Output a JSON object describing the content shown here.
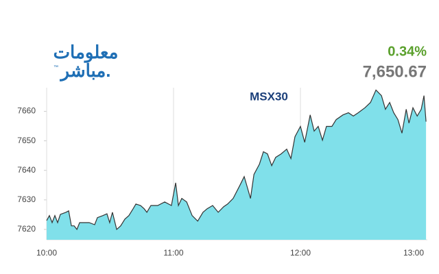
{
  "logo": {
    "line1": "معلومات",
    "line2": "مباشر.",
    "mark": "™"
  },
  "change": "0.34%",
  "last": "7,650.67",
  "chart_data": {
    "type": "area",
    "title": "MSX30",
    "x": [
      0,
      1.3,
      2.6,
      3.9,
      5.2,
      6.5,
      9.1,
      10.4,
      11.7,
      13,
      14.3,
      15.6,
      20.1,
      22.7,
      24,
      26.6,
      28.5,
      29.8,
      31.1,
      33.1,
      35,
      37,
      38.9,
      40.9,
      42.2,
      44.4,
      46.1,
      47.4,
      49.3,
      52.5,
      55.8,
      59,
      61,
      62.3,
      63.9,
      66.2,
      68.8,
      71.4,
      73.9,
      75.9,
      78.5,
      81.1,
      83.7,
      85.6,
      88.2,
      91.5,
      93.4,
      94.7,
      96.4,
      98,
      100.6,
      102.5,
      104.4,
      106.4,
      108.3,
      110.9,
      113.5,
      115.5,
      117.4,
      120,
      122,
      124.6,
      126.5,
      128.4,
      130.4,
      132.3,
      134.9,
      136.9,
      140.1,
      142.7,
      145,
      147.3,
      150.5,
      153.1,
      155.7,
      158.3,
      160.2,
      162.2,
      164.1,
      166.1,
      168,
      170,
      171.3,
      173.2,
      175.2,
      177.1,
      178.4,
      179.4
    ],
    "values": [
      7623.0,
      7624.7,
      7622.3,
      7624.7,
      7622.3,
      7625.1,
      7625.8,
      7626.3,
      7621.2,
      7621.2,
      7620.0,
      7622.3,
      7622.3,
      7621.6,
      7624.0,
      7624.7,
      7625.3,
      7622.3,
      7625.8,
      7620.0,
      7621.2,
      7623.5,
      7624.7,
      7627.0,
      7628.6,
      7628.1,
      7627.0,
      7625.8,
      7628.1,
      7628.1,
      7629.3,
      7628.1,
      7635.8,
      7628.1,
      7630.5,
      7629.3,
      7624.7,
      7622.8,
      7625.8,
      7627.0,
      7628.1,
      7625.8,
      7627.7,
      7628.6,
      7630.5,
      7635.1,
      7637.9,
      7634.7,
      7630.5,
      7638.6,
      7642.1,
      7646.3,
      7645.6,
      7641.6,
      7644.4,
      7645.6,
      7647.2,
      7644.0,
      7651.4,
      7654.9,
      7649.5,
      7658.8,
      7653.3,
      7654.9,
      7650.2,
      7654.9,
      7654.9,
      7657.2,
      7658.8,
      7659.5,
      7658.4,
      7659.5,
      7661.2,
      7663.0,
      7667.2,
      7665.3,
      7660.7,
      7663.0,
      7659.5,
      7657.2,
      7652.6,
      7660.7,
      7656.0,
      7661.2,
      7658.4,
      7660.7,
      7665.3,
      7656.5
    ],
    "color": "#80e0ea",
    "line_color": "#333333",
    "xlim": [
      0,
      180
    ],
    "xticks": [
      {
        "value": 0,
        "label": "10:00"
      },
      {
        "value": 60,
        "label": "11:00"
      },
      {
        "value": 120,
        "label": "12:00"
      },
      {
        "value": 180,
        "label": "13:00"
      }
    ],
    "ylim": [
      7616.5,
      7668
    ],
    "yticks": [
      7620,
      7630,
      7640,
      7650,
      7660
    ],
    "grid": "x"
  }
}
